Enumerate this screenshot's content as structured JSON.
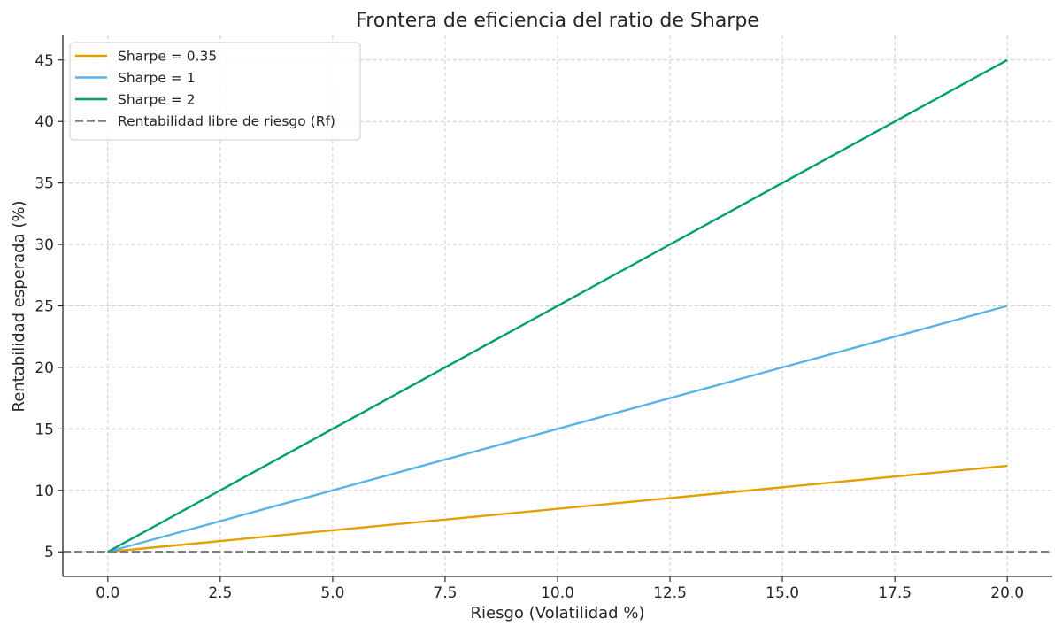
{
  "chart_data": {
    "type": "line",
    "title": "Frontera de eficiencia del ratio de Sharpe",
    "xlabel": "Riesgo (Volatilidad %)",
    "ylabel": "Rentabilidad esperada (%)",
    "xlim": [
      -1,
      21
    ],
    "ylim": [
      3,
      47
    ],
    "xticks": [
      0,
      2.5,
      5,
      7.5,
      10,
      12.5,
      15,
      17.5,
      20
    ],
    "xtick_labels": [
      "0.0",
      "2.5",
      "5.0",
      "7.5",
      "10.0",
      "12.5",
      "15.0",
      "17.5",
      "20.0"
    ],
    "yticks": [
      5,
      10,
      15,
      20,
      25,
      30,
      35,
      40,
      45
    ],
    "ytick_labels": [
      "5",
      "10",
      "15",
      "20",
      "25",
      "30",
      "35",
      "40",
      "45"
    ],
    "grid": true,
    "legend_position": "top-left",
    "series": [
      {
        "name": "Sharpe = 0.35",
        "color": "#E69F00",
        "style": "solid",
        "x": [
          0,
          20
        ],
        "y": [
          5,
          12
        ]
      },
      {
        "name": "Sharpe = 1",
        "color": "#56B4E9",
        "style": "solid",
        "x": [
          0,
          20
        ],
        "y": [
          5,
          25
        ]
      },
      {
        "name": "Sharpe = 2",
        "color": "#009E73",
        "style": "solid",
        "x": [
          0,
          20
        ],
        "y": [
          5,
          45
        ]
      },
      {
        "name": "Rentabilidad libre de riesgo (Rf)",
        "color": "#7f7f7f",
        "style": "dashed",
        "x": [
          -1,
          21
        ],
        "y": [
          5,
          5
        ]
      }
    ]
  }
}
